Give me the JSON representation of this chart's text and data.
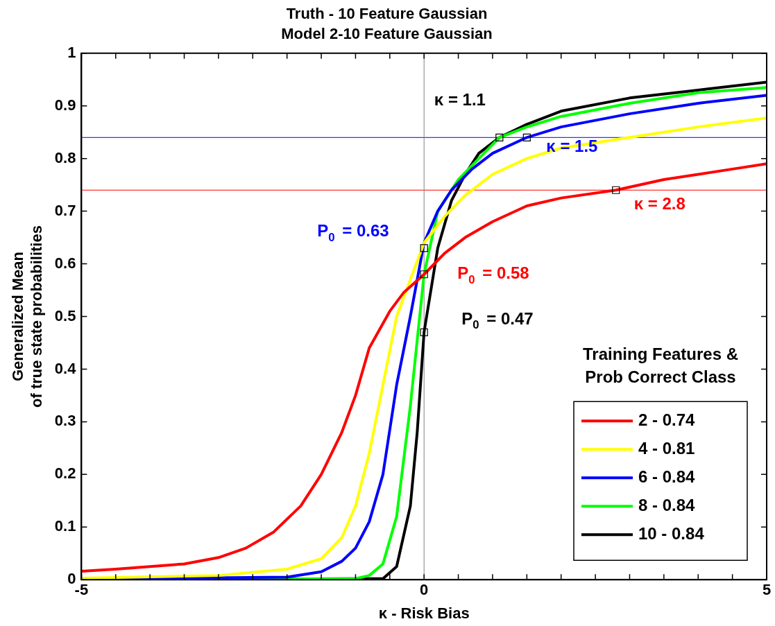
{
  "chart_data": {
    "type": "line",
    "title": "Truth - 10 Feature Gaussian",
    "subtitle": "Model 2-10 Feature Gaussian",
    "xlabel": "κ - Risk Bias",
    "ylabel": "Generalized Mean\nof true state probabilities",
    "legend_title": "Training Features &\nProb Correct Class",
    "legend": "bottom right",
    "grid": false,
    "marker": "none",
    "line_style": "solid",
    "xlim": [
      -5,
      5
    ],
    "ylim": [
      0,
      1
    ],
    "xticks": [
      -5,
      {
        "value": -4.5,
        "label": null
      },
      {
        "value": -4,
        "label": null
      },
      {
        "value": -3.5,
        "label": null
      },
      {
        "value": -3,
        "label": null
      },
      {
        "value": -2.5,
        "label": null
      },
      {
        "value": -2,
        "label": null
      },
      {
        "value": -1.5,
        "label": null
      },
      {
        "value": -1,
        "label": null
      },
      {
        "value": -0.5,
        "label": null
      },
      0,
      {
        "value": 0.5,
        "label": null
      },
      {
        "value": 1,
        "label": null
      },
      {
        "value": 1.5,
        "label": null
      },
      {
        "value": 2,
        "label": null
      },
      {
        "value": 2.5,
        "label": null
      },
      {
        "value": 3,
        "label": null
      },
      {
        "value": 3.5,
        "label": null
      },
      {
        "value": 4,
        "label": null
      },
      {
        "value": 4.5,
        "label": null
      },
      5
    ],
    "yticks": [
      0,
      0.1,
      0.2,
      0.3,
      0.4,
      0.5,
      0.6,
      0.7,
      0.8,
      0.9,
      1
    ],
    "ref_lines": [
      {
        "axis": "y",
        "value": 0.84,
        "color": "#0000ff"
      },
      {
        "axis": "y",
        "value": 0.74,
        "color": "#ff0000"
      },
      {
        "axis": "x",
        "value": 0,
        "color": "#808080"
      }
    ],
    "annotations": [
      {
        "text": "κ = 1.1",
        "x": 1.1,
        "y": 0.84
      },
      {
        "text": "κ = 1.5",
        "x": 1.5,
        "y": 0.84
      },
      {
        "text": "κ = 2.8",
        "x": 2.8,
        "y": 0.74
      },
      {
        "text": "P$_{0}$ = 0.63",
        "x": 0,
        "y": 0.63
      },
      {
        "text": "P$_{0}$ = 0.58",
        "x": 0,
        "y": 0.58
      },
      {
        "text": "P$_{0}$ = 0.47",
        "x": 0,
        "y": 0.47
      }
    ],
    "series": [
      {
        "name": "2 - 0.74",
        "color": "#ff0000",
        "x": [
          -5,
          -4.5,
          -4,
          -3.5,
          -3,
          -2.6,
          -2.2,
          -1.8,
          -1.5,
          -1.2,
          -1,
          -0.8,
          -0.5,
          -0.3,
          0,
          0.3,
          0.6,
          1,
          1.5,
          2,
          2.8,
          3.5,
          4,
          4.5,
          5
        ],
        "values": [
          0.016,
          0.02,
          0.025,
          0.03,
          0.042,
          0.06,
          0.09,
          0.14,
          0.2,
          0.28,
          0.35,
          0.44,
          0.51,
          0.545,
          0.58,
          0.62,
          0.65,
          0.68,
          0.71,
          0.725,
          0.74,
          0.76,
          0.77,
          0.78,
          0.79
        ]
      },
      {
        "name": "4 - 0.81",
        "color": "#ffff00",
        "x": [
          -5,
          -3,
          -2,
          -1.5,
          -1.2,
          -1,
          -0.8,
          -0.6,
          -0.4,
          -0.2,
          0,
          0.3,
          0.6,
          1,
          1.5,
          2,
          3,
          4,
          5
        ],
        "values": [
          0.003,
          0.008,
          0.02,
          0.04,
          0.08,
          0.14,
          0.24,
          0.37,
          0.5,
          0.57,
          0.64,
          0.69,
          0.73,
          0.77,
          0.8,
          0.82,
          0.84,
          0.86,
          0.877
        ]
      },
      {
        "name": "6 - 0.84",
        "color": "#0000ff",
        "x": [
          -5,
          -2,
          -1.5,
          -1.2,
          -1,
          -0.8,
          -0.6,
          -0.4,
          -0.2,
          0,
          0.2,
          0.4,
          0.7,
          1,
          1.5,
          2,
          3,
          4,
          5
        ],
        "values": [
          0.001,
          0.005,
          0.015,
          0.035,
          0.06,
          0.11,
          0.2,
          0.37,
          0.5,
          0.64,
          0.7,
          0.74,
          0.78,
          0.81,
          0.84,
          0.86,
          0.885,
          0.905,
          0.92
        ]
      },
      {
        "name": "8 - 0.84",
        "color": "#00ff00",
        "x": [
          -5,
          -1,
          -0.8,
          -0.6,
          -0.4,
          -0.2,
          0,
          0.2,
          0.5,
          0.8,
          1.1,
          1.5,
          2,
          3,
          4,
          5
        ],
        "values": [
          0,
          0.002,
          0.008,
          0.03,
          0.12,
          0.33,
          0.58,
          0.7,
          0.76,
          0.8,
          0.84,
          0.86,
          0.88,
          0.905,
          0.925,
          0.935
        ]
      },
      {
        "name": "10 - 0.84",
        "color": "#000000",
        "x": [
          -5,
          -0.6,
          -0.4,
          -0.2,
          -0.1,
          0,
          0.2,
          0.4,
          0.6,
          0.8,
          1.1,
          1.5,
          2,
          3,
          4,
          5
        ],
        "values": [
          0,
          0.002,
          0.025,
          0.14,
          0.28,
          0.47,
          0.63,
          0.72,
          0.77,
          0.81,
          0.84,
          0.865,
          0.89,
          0.915,
          0.93,
          0.945
        ]
      }
    ]
  }
}
